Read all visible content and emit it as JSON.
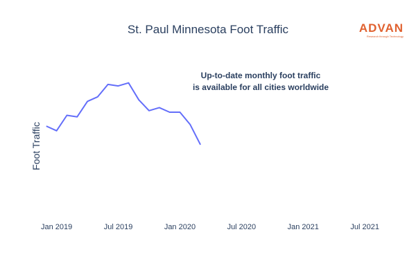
{
  "chart_data": {
    "type": "line",
    "title": "St. Paul Minnesota Foot Traffic",
    "xlabel": "",
    "ylabel": "Foot Traffic",
    "x_tick_labels": [
      "Jan 2019",
      "Jul 2019",
      "Jan 2020",
      "Jul 2020",
      "Jan 2021",
      "Jul 2021"
    ],
    "x_ticks": [
      "2019-01",
      "2019-07",
      "2020-01",
      "2020-07",
      "2021-01",
      "2021-07"
    ],
    "xlim": [
      "2018-11",
      "2021-08"
    ],
    "ylim": [
      0,
      100
    ],
    "grid": false,
    "series": [
      {
        "x": [
          "2018-12",
          "2019-01",
          "2019-02",
          "2019-03",
          "2019-04",
          "2019-05",
          "2019-06",
          "2019-07",
          "2019-08",
          "2019-09",
          "2019-10",
          "2019-11",
          "2019-12",
          "2020-01",
          "2020-02",
          "2020-03"
        ],
        "values": [
          56,
          53,
          63,
          62,
          72,
          75,
          83,
          82,
          84,
          73,
          66,
          68,
          65,
          65,
          57,
          44
        ],
        "color": "#636efa"
      }
    ],
    "annotation": [
      "Up-to-date monthly foot traffic",
      "is available for all cities worldwide"
    ]
  },
  "brand": {
    "name": "ADVAN",
    "tagline": "Research through Technology",
    "color": "#e0612f"
  }
}
